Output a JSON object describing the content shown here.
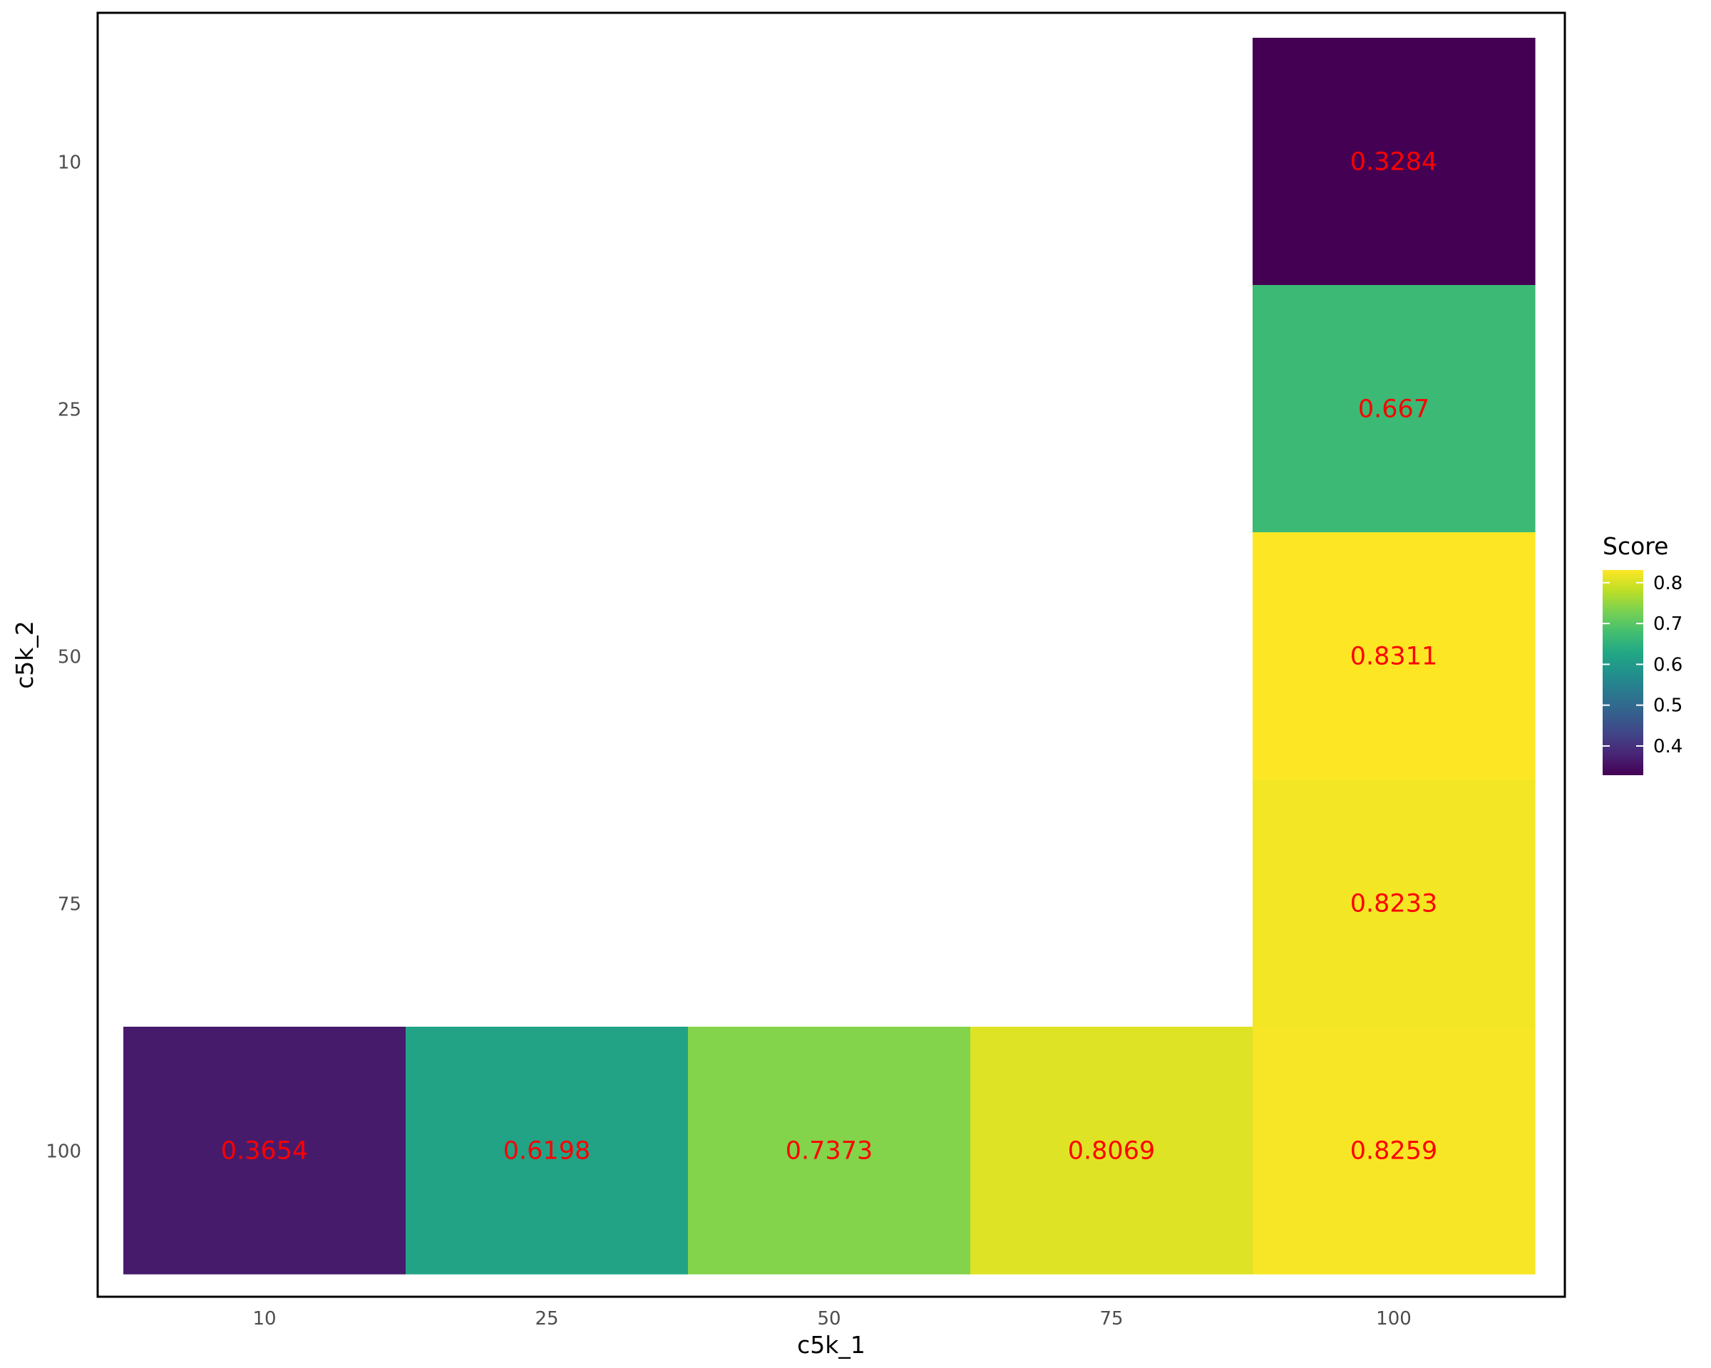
{
  "chart_data": {
    "type": "heatmap",
    "xlabel": "c5k_1",
    "ylabel": "c5k_2",
    "x_categories": [
      "10",
      "25",
      "50",
      "75",
      "100"
    ],
    "y_categories": [
      "10",
      "25",
      "50",
      "75",
      "100"
    ],
    "cells": [
      {
        "x": "100",
        "y": "10",
        "value": 0.3284,
        "label": "0.3284"
      },
      {
        "x": "100",
        "y": "25",
        "value": 0.667,
        "label": "0.667"
      },
      {
        "x": "100",
        "y": "50",
        "value": 0.8311,
        "label": "0.8311"
      },
      {
        "x": "100",
        "y": "75",
        "value": 0.8233,
        "label": "0.8233"
      },
      {
        "x": "10",
        "y": "100",
        "value": 0.3654,
        "label": "0.3654"
      },
      {
        "x": "25",
        "y": "100",
        "value": 0.6198,
        "label": "0.6198"
      },
      {
        "x": "50",
        "y": "100",
        "value": 0.7373,
        "label": "0.7373"
      },
      {
        "x": "75",
        "y": "100",
        "value": 0.8069,
        "label": "0.8069"
      },
      {
        "x": "100",
        "y": "100",
        "value": 0.8259,
        "label": "0.8259"
      }
    ],
    "legend": {
      "title": "Score",
      "placement": "right",
      "range": [
        0.3284,
        0.8311
      ],
      "ticks": [
        0.4,
        0.5,
        0.6,
        0.7,
        0.8
      ],
      "tick_labels": [
        "0.4",
        "0.5",
        "0.6",
        "0.7",
        "0.8"
      ]
    },
    "colorscale": "viridis",
    "label_color": "#ff0000",
    "grid": false,
    "panel_border": true
  }
}
